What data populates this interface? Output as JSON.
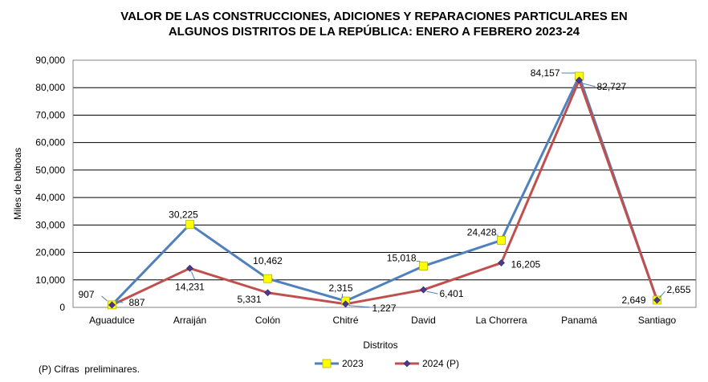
{
  "chart_data": {
    "type": "line",
    "title_lines": [
      "VALOR DE LAS CONSTRUCCIONES, ADICIONES Y REPARACIONES PARTICULARES EN",
      "ALGUNOS DISTRITOS DE LA REPÚBLICA: ENERO A FEBRERO 2023-24"
    ],
    "xlabel": "Distritos",
    "ylabel": "Miles de balboas",
    "ylim": [
      0,
      90000
    ],
    "ytick_step": 10000,
    "yticks": [
      "0",
      "10,000",
      "20,000",
      "30,000",
      "40,000",
      "50,000",
      "60,000",
      "70,000",
      "80,000",
      "90,000"
    ],
    "grid": true,
    "legend_position": "bottom",
    "categories": [
      "Aguadulce",
      "Arraiján",
      "Colón",
      "Chitré",
      "David",
      "La Chorrera",
      "Panamá",
      "Santiago"
    ],
    "series": [
      {
        "name": "2023",
        "color": "#4f81bd",
        "marker": "square",
        "marker_color": "#ffff00",
        "values": [
          907,
          30225,
          10462,
          2315,
          15018,
          24428,
          84157,
          2649
        ],
        "labels": [
          "907",
          "30,225",
          "10,462",
          "2,315",
          "15,018",
          "24,428",
          "84,157",
          "2,649"
        ]
      },
      {
        "name": "2024 (P)",
        "color": "#c0504d",
        "marker": "diamond",
        "marker_color": "#4b3a8c",
        "values": [
          887,
          14231,
          5331,
          1227,
          6401,
          16205,
          82727,
          2655
        ],
        "labels": [
          "887",
          "14,231",
          "5,331",
          "1,227",
          "6,401",
          "16,205",
          "82,727",
          "2,655"
        ]
      }
    ]
  },
  "footnote": "(P) Cifras  preliminares."
}
